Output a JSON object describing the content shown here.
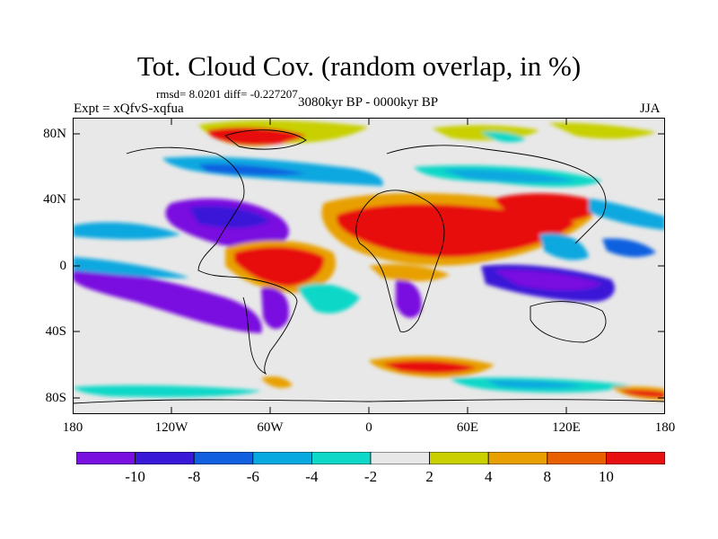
{
  "title": "Tot. Cloud Cov. (random overlap, in %)",
  "stats": "rmsd= 8.0201 diff= -0.227207",
  "period": "3080kyr BP - 0000kyr BP",
  "expt": "Expt = xQfvS-xqfua",
  "season": "JJA",
  "axes": {
    "lat_labels": [
      "80N",
      "40N",
      "0",
      "40S",
      "80S"
    ],
    "lon_labels": [
      "180",
      "120W",
      "60W",
      "0",
      "60E",
      "120E",
      "180"
    ]
  },
  "colorbar": {
    "colors": [
      "#7a10e0",
      "#3a18d8",
      "#1060e0",
      "#08a8e0",
      "#10d8c8",
      "#e8e8e8",
      "#c8d000",
      "#e8a000",
      "#e86000",
      "#e81010"
    ],
    "labels": [
      "-10",
      "-8",
      "-6",
      "-4",
      "-2",
      "2",
      "4",
      "8",
      "10"
    ]
  }
}
